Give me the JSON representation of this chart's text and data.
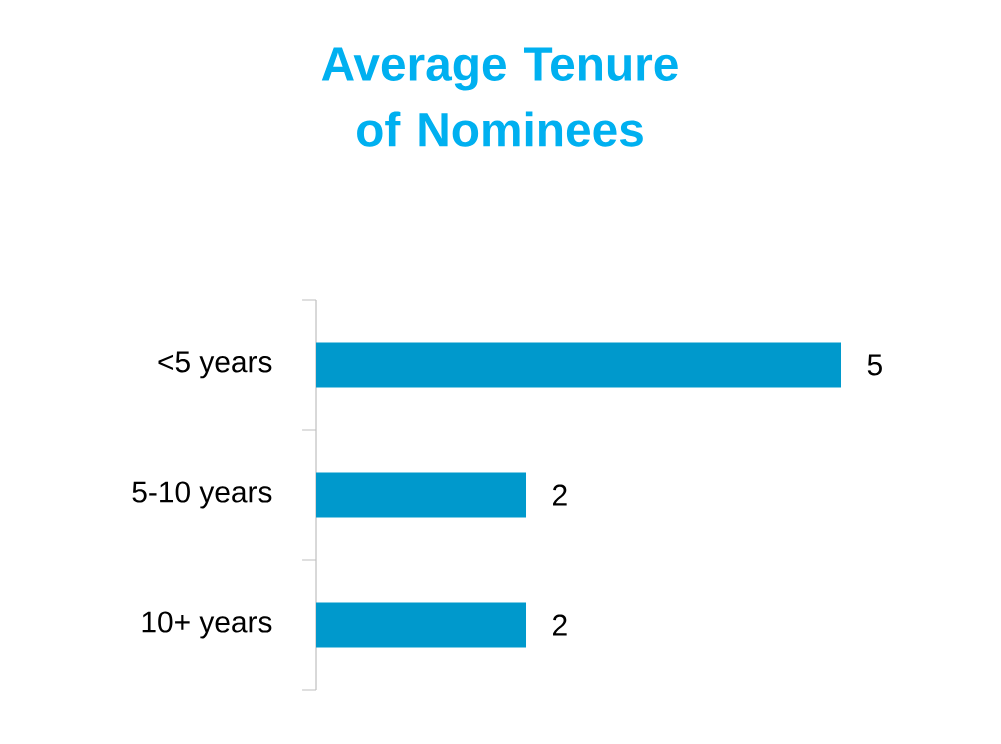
{
  "chart_data": {
    "type": "bar",
    "orientation": "horizontal",
    "title": "Average Tenure of Nominees",
    "categories": [
      "<5 years",
      "5-10 years",
      "10+ years"
    ],
    "values": [
      5,
      2,
      2
    ],
    "color": "#0099cc",
    "data_labels": true
  }
}
